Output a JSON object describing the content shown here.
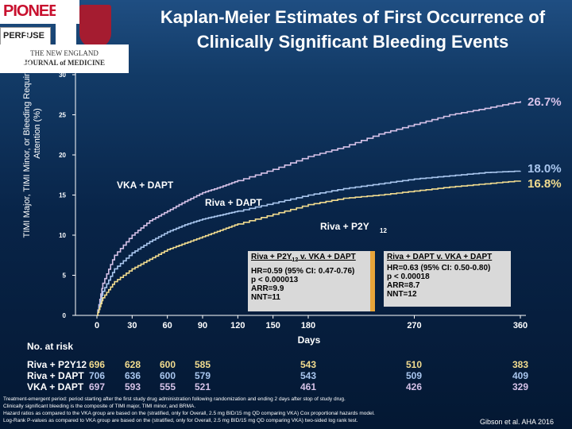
{
  "title": "Kaplan-Meier Estimates of First Occurrence of Clinically Significant Bleeding Events",
  "logos": {
    "pioneer": "PIONEER",
    "perfuse": "PERFUSE",
    "nejm_line1": "THE NEW ENGLAND",
    "nejm_line2": "JOURNAL of MEDICINE"
  },
  "colors": {
    "vka": "#d6c2e8",
    "riva_dapt": "#a9c6ee",
    "riva_p2y12": "#f2dc8f",
    "background": "#082448"
  },
  "chart_data": {
    "type": "line",
    "title": "Kaplan-Meier Estimates of First Occurrence of Clinically Significant Bleeding Events",
    "xlabel": "Days",
    "ylabel": "TIMI Major, TIMI Minor, or Bleeding Requiring Medical Attention (%)",
    "xlim": [
      0,
      360
    ],
    "ylim": [
      0,
      30
    ],
    "x_ticks": [
      "0",
      "30",
      "60",
      "90",
      "120",
      "150",
      "180",
      "270",
      "360"
    ],
    "y_ticks": [
      "0",
      "5",
      "10",
      "15",
      "20",
      "25",
      "30"
    ],
    "series": [
      {
        "name": "VKA + DAPT",
        "end_label": "26.7%",
        "x": [
          0,
          5,
          15,
          30,
          45,
          60,
          75,
          90,
          105,
          120,
          150,
          180,
          210,
          240,
          270,
          300,
          330,
          360
        ],
        "y": [
          0,
          4.0,
          7.5,
          10.0,
          11.8,
          13.0,
          14.2,
          15.3,
          16.0,
          16.8,
          18.2,
          19.8,
          21.0,
          22.6,
          23.8,
          25.0,
          25.8,
          26.7
        ]
      },
      {
        "name": "Riva + DAPT",
        "end_label": "18.0%",
        "x": [
          0,
          5,
          15,
          30,
          45,
          60,
          75,
          90,
          105,
          120,
          150,
          180,
          210,
          240,
          270,
          300,
          330,
          360
        ],
        "y": [
          0,
          3.0,
          5.8,
          7.8,
          9.2,
          10.4,
          11.3,
          12.0,
          12.5,
          13.0,
          14.0,
          15.0,
          15.8,
          16.4,
          17.0,
          17.4,
          17.8,
          18.0
        ]
      },
      {
        "name": "Riva + P2Y12",
        "end_label": "16.8%",
        "x": [
          0,
          5,
          15,
          30,
          45,
          60,
          75,
          90,
          105,
          120,
          150,
          180,
          210,
          240,
          270,
          300,
          330,
          360
        ],
        "y": [
          0,
          2.2,
          4.2,
          5.8,
          7.0,
          8.2,
          9.0,
          9.8,
          10.6,
          11.4,
          12.6,
          13.8,
          14.6,
          15.0,
          15.5,
          16.0,
          16.4,
          16.8
        ]
      }
    ],
    "annotations": [
      {
        "text": "VKA + DAPT"
      },
      {
        "text": "Riva + DAPT"
      },
      {
        "text": "Riva + P2Y",
        "subscript": "12"
      }
    ]
  },
  "comparison_boxes": [
    {
      "title_pre": "Riva + P2Y",
      "title_sub": "12",
      "title_post": " v. VKA + DAPT",
      "lines": [
        "HR=0.59 (95% CI: 0.47-0.76)",
        "p < 0.000013",
        "ARR=9.9",
        "NNT=11"
      ]
    },
    {
      "title": "Riva + DAPT v. VKA + DAPT",
      "lines": [
        "HR=0.63 (95% CI: 0.50-0.80)",
        "p < 0.00018",
        "ARR=8.7",
        "NNT=12"
      ]
    }
  ],
  "at_risk": {
    "title": "No. at risk",
    "rows": [
      {
        "label": "Riva + P2Y12",
        "values": [
          "696",
          "628",
          "600",
          "585",
          "543",
          "510",
          "383"
        ]
      },
      {
        "label": "Riva + DAPT",
        "values": [
          "706",
          "636",
          "600",
          "579",
          "543",
          "509",
          "409"
        ]
      },
      {
        "label": "VKA + DAPT",
        "values": [
          "697",
          "593",
          "555",
          "521",
          "461",
          "426",
          "329"
        ]
      }
    ]
  },
  "footnote": [
    "Treatment-emergent period: period starting after the first study drug administration following randomization and ending 2 days after stop of study drug.",
    "Clinically significant bleeding is the composite of TIMI major, TIMI minor, and BRMA.",
    "Hazard ratios as compared to the VKA group are based on the (stratified, only for Overall, 2.5 mg BID/15 mg QD comparing VKA) Cox proportional hazards model.",
    "Log-Rank P-values as compared to VKA group are based on the (stratified, only for Overall, 2.5 mg BID/15 mg QD comparing VKA) two-sided log rank test."
  ],
  "citation": "Gibson et al. AHA 2016"
}
